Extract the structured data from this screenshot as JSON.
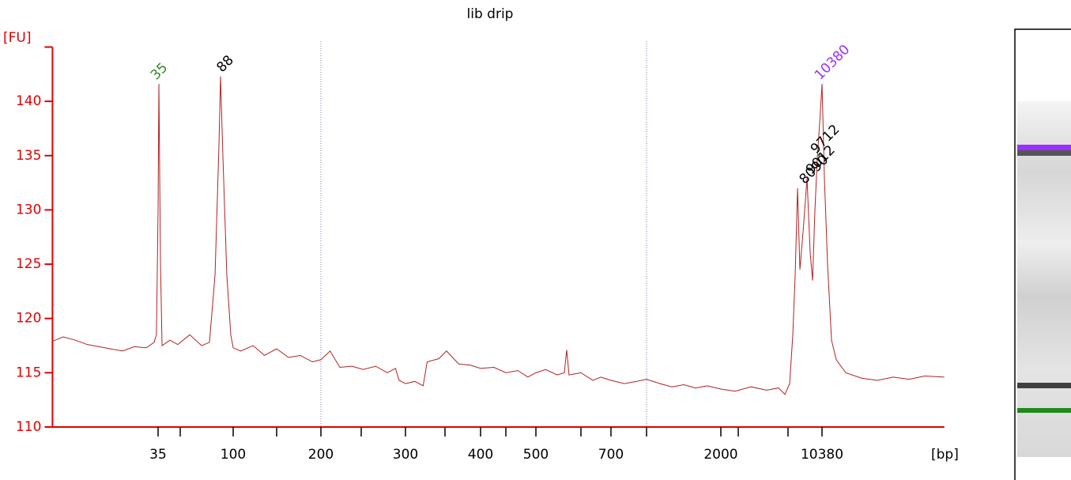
{
  "chart_data": {
    "type": "line",
    "title": "lib drip",
    "y_label": "[FU]",
    "x_label": "[bp]",
    "color": "#b22222",
    "axis_color": "#e00000",
    "ylim": [
      110,
      145
    ],
    "yticks": [
      110,
      115,
      120,
      125,
      130,
      135,
      140
    ],
    "xlim": [
      8,
      76000
    ],
    "xticks": [
      35,
      100,
      200,
      300,
      400,
      500,
      700,
      2000,
      10380
    ],
    "x": [
      8.0,
      9.3,
      11.0,
      13.0,
      15.3,
      18.0,
      21.3,
      25.1,
      29.7,
      33.1,
      34.2,
      35,
      35.4,
      36.2,
      37.0,
      41.3,
      46.1,
      54.5,
      64.3,
      71.8,
      77.6,
      82.0,
      83.8,
      86.6,
      91.5,
      96.7,
      100,
      106,
      117,
      128,
      141,
      155,
      170,
      187,
      200,
      209,
      219,
      232,
      245,
      260,
      275,
      286,
      291,
      300,
      311,
      321,
      326,
      341,
      351,
      368,
      385,
      400,
      422,
      443,
      465,
      484,
      500,
      522,
      550,
      568,
      574,
      580,
      612,
      645,
      669,
      700,
      796,
      891,
      983,
      1118,
      1252,
      1403,
      1571,
      1759,
      2000,
      2521,
      3262,
      4219,
      5117,
      5673,
      6128,
      6452,
      6705,
      6969,
      7243,
      7627,
      8133,
      8563,
      8900,
      9250,
      9614,
      9994,
      10380,
      10789,
      11359,
      12113,
      13086,
      15271,
      19754,
      25555,
      33057,
      42766,
      55317,
      76000
    ],
    "values": [
      117.9,
      118.3,
      118.0,
      117.6,
      117.4,
      117.2,
      117.0,
      117.4,
      117.3,
      117.8,
      118.5,
      130,
      141.6,
      125,
      117.5,
      118.0,
      117.6,
      118.5,
      117.5,
      117.8,
      124,
      136,
      142.3,
      135,
      124,
      118.5,
      117.3,
      117.0,
      117.5,
      116.6,
      117.2,
      116.4,
      116.6,
      116.0,
      116.2,
      117.0,
      115.5,
      115.6,
      115.3,
      115.6,
      115.0,
      115.4,
      114.3,
      114.0,
      114.2,
      113.8,
      116.0,
      116.3,
      117.0,
      115.8,
      115.7,
      115.4,
      115.5,
      115.0,
      115.2,
      114.6,
      115.0,
      115.3,
      114.8,
      115.0,
      117.1,
      114.8,
      115.0,
      114.3,
      114.6,
      114.3,
      114.0,
      114.2,
      114.4,
      114.0,
      113.7,
      113.9,
      113.6,
      113.8,
      113.5,
      113.3,
      113.7,
      113.4,
      113.6,
      113.0,
      114.0,
      118.5,
      124,
      132.0,
      124.5,
      128,
      132.9,
      126,
      123.5,
      130,
      134.8,
      138,
      141.6,
      133,
      125,
      118,
      116.2,
      115.0,
      114.5,
      114.3,
      114.6,
      114.4,
      114.7,
      114.6
    ],
    "peaks": [
      {
        "size": 35,
        "height": 141.6,
        "color": "#2e8b22"
      },
      {
        "size": 88,
        "height": 142.3,
        "color": "#000000"
      },
      {
        "size": 8090,
        "height": 132.0,
        "color": "#000000"
      },
      {
        "size": 9012,
        "height": 132.9,
        "color": "#000000"
      },
      {
        "size": 9712,
        "height": 134.8,
        "color": "#000000"
      },
      {
        "size": 10380,
        "height": 141.6,
        "color": "#9b30ff"
      }
    ]
  }
}
